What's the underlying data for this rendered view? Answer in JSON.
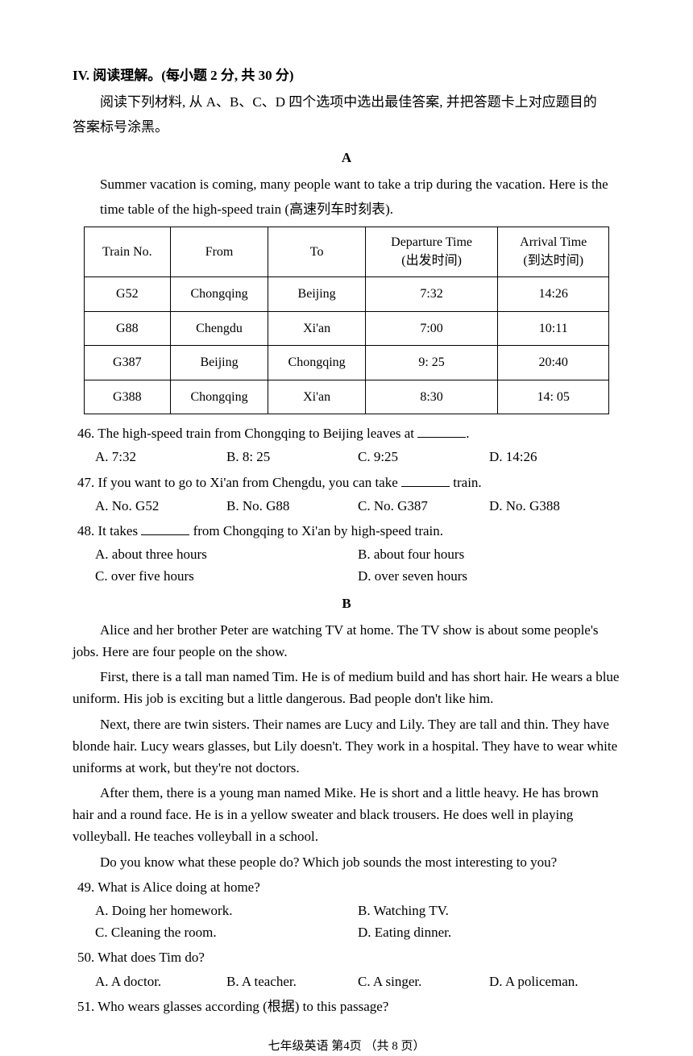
{
  "section": {
    "title": "IV. 阅读理解。(每小题 2 分, 共 30 分)",
    "instruction_line1": "阅读下列材料, 从 A、B、C、D 四个选项中选出最佳答案, 并把答题卡上对应题目的",
    "instruction_line2": "答案标号涂黑。"
  },
  "passageA": {
    "label": "A",
    "para1": "Summer vacation is coming, many people want to take a trip during the vacation. Here is the",
    "para2": "time table of the high-speed train (高速列车时刻表).",
    "table": {
      "headers": {
        "col1": "Train No.",
        "col2": "From",
        "col3": "To",
        "col4_line1": "Departure Time",
        "col4_line2": "(出发时间)",
        "col5_line1": "Arrival Time",
        "col5_line2": "(到达时间)"
      },
      "rows": [
        {
          "c1": "G52",
          "c2": "Chongqing",
          "c3": "Beijing",
          "c4": "7:32",
          "c5": "14:26"
        },
        {
          "c1": "G88",
          "c2": "Chengdu",
          "c3": "Xi'an",
          "c4": "7:00",
          "c5": "10:11"
        },
        {
          "c1": "G387",
          "c2": "Beijing",
          "c3": "Chongqing",
          "c4": "9: 25",
          "c5": "20:40"
        },
        {
          "c1": "G388",
          "c2": "Chongqing",
          "c3": "Xi'an",
          "c4": "8:30",
          "c5": "14: 05"
        }
      ]
    }
  },
  "q46": {
    "stem_pre": "46. The high-speed train from Chongqing to Beijing leaves at ",
    "stem_post": ".",
    "a": "A. 7:32",
    "b": "B. 8: 25",
    "c": "C. 9:25",
    "d": "D. 14:26"
  },
  "q47": {
    "stem_pre": "47. If you want to go to Xi'an from Chengdu, you can take ",
    "stem_post": " train.",
    "a": "A. No. G52",
    "b": "B. No. G88",
    "c": "C. No. G387",
    "d": "D. No. G388"
  },
  "q48": {
    "stem_pre": "48. It takes ",
    "stem_post": " from Chongqing to Xi'an by high-speed train.",
    "a": "A. about three hours",
    "b": "B. about four hours",
    "c": "C. over five hours",
    "d": "D. over seven hours"
  },
  "passageB": {
    "label": "B",
    "p1": "Alice and her brother Peter are watching TV at home. The TV show is about some people's jobs. Here are four people on the show.",
    "p2": "First, there is a tall man named Tim. He is of medium build and has short hair. He wears a blue uniform. His job is exciting but a little dangerous. Bad people don't like him.",
    "p3": "Next, there are twin sisters. Their names are Lucy and Lily. They are tall and thin. They have blonde hair. Lucy wears glasses, but Lily doesn't. They work in a hospital. They have to wear white uniforms at work, but they're not doctors.",
    "p4": "After them, there is a young man named Mike. He is short and a little heavy. He has brown hair and a round face. He is in a yellow sweater and black trousers. He does well in playing volleyball. He teaches volleyball in a school.",
    "p5": "Do you know what these people do? Which job sounds the most interesting to you?"
  },
  "q49": {
    "stem": "49. What is Alice doing at home?",
    "a": "A. Doing her homework.",
    "b": "B. Watching TV.",
    "c": "C. Cleaning the room.",
    "d": "D. Eating dinner."
  },
  "q50": {
    "stem": "50. What does Tim do?",
    "a": "A. A doctor.",
    "b": "B. A teacher.",
    "c": "C. A singer.",
    "d": "D. A policeman."
  },
  "q51": {
    "stem": "51. Who wears glasses according (根据) to this passage?"
  },
  "footer": "七年级英语 第4页 （共 8 页）"
}
